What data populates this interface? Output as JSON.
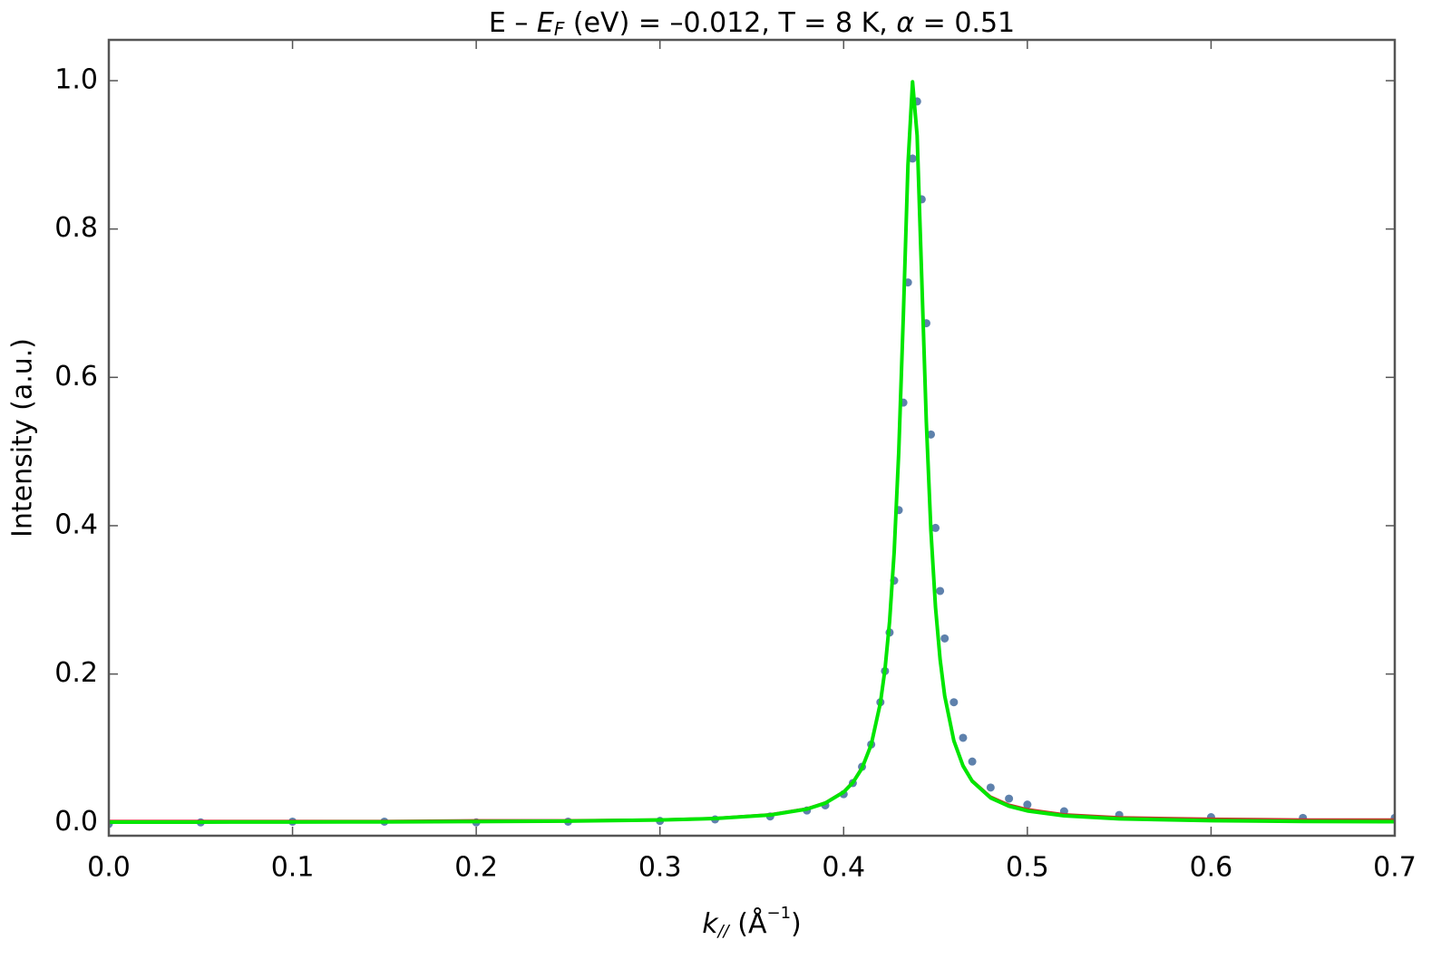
{
  "chart_data": {
    "type": "scatter",
    "title_parts": [
      "E – ",
      "E",
      "F",
      " (eV) = –0.012, T = 8 K, ",
      "α",
      " = 0.51"
    ],
    "x_label_parts": [
      "k",
      "//",
      " (Å",
      "−1",
      ")"
    ],
    "y_label": "Intensity (a.u.)",
    "xlim": [
      0,
      0.7
    ],
    "ylim": [
      -0.018,
      1.055
    ],
    "xticks": [
      {
        "value": 0,
        "label": "0.0"
      },
      0.1,
      0.2,
      0.3,
      0.4,
      0.5,
      0.6,
      0.7
    ],
    "yticks": [
      {
        "value": 0,
        "label": "0.0"
      },
      0.2,
      0.4,
      0.6,
      0.8,
      {
        "value": 1,
        "label": "1.0"
      }
    ],
    "frame_color": "#555555",
    "series": [
      {
        "mode": "markers",
        "color": "#5e81ac",
        "x": [
          0,
          0.05,
          0.1,
          0.15,
          0.2,
          0.25,
          0.3,
          0.33,
          0.36,
          0.38,
          0.39,
          0.4,
          0.405,
          0.41,
          0.415,
          0.42,
          0.4225,
          0.425,
          0.4275,
          0.43,
          0.4325,
          0.435,
          0.4375,
          0.44,
          0.4425,
          0.445,
          0.4475,
          0.45,
          0.4525,
          0.455,
          0.46,
          0.465,
          0.47,
          0.48,
          0.49,
          0.5,
          0.52,
          0.55,
          0.6,
          0.65,
          0.7
        ],
        "values": [
          -0.002,
          0.0,
          0.001,
          0.001,
          0.0,
          0.001,
          0.002,
          0.004,
          0.008,
          0.016,
          0.023,
          0.038,
          0.053,
          0.075,
          0.105,
          0.162,
          0.204,
          0.256,
          0.326,
          0.421,
          0.566,
          0.728,
          0.895,
          0.972,
          0.84,
          0.673,
          0.523,
          0.397,
          0.312,
          0.248,
          0.162,
          0.114,
          0.082,
          0.047,
          0.032,
          0.024,
          0.015,
          0.01,
          0.007,
          0.006,
          0.006
        ]
      },
      {
        "mode": "lines",
        "color": "#c0392b",
        "x": [
          0,
          0.05,
          0.1,
          0.15,
          0.2,
          0.25,
          0.3,
          0.33,
          0.36,
          0.38,
          0.39,
          0.4,
          0.405,
          0.41,
          0.415,
          0.42,
          0.4225,
          0.425,
          0.4275,
          0.43,
          0.4325,
          0.435,
          0.4375,
          0.44,
          0.4425,
          0.445,
          0.4475,
          0.45,
          0.4525,
          0.455,
          0.46,
          0.465,
          0.47,
          0.48,
          0.49,
          0.5,
          0.52,
          0.55,
          0.6,
          0.65,
          0.7
        ],
        "values": [
          0.002,
          0.002,
          0.002,
          0.002,
          0.003,
          0.003,
          0.004,
          0.006,
          0.011,
          0.019,
          0.027,
          0.042,
          0.055,
          0.075,
          0.106,
          0.162,
          0.207,
          0.271,
          0.365,
          0.5,
          0.684,
          0.886,
          0.999,
          0.926,
          0.734,
          0.541,
          0.394,
          0.291,
          0.221,
          0.172,
          0.112,
          0.078,
          0.057,
          0.035,
          0.024,
          0.018,
          0.011,
          0.007,
          0.005,
          0.004,
          0.004
        ]
      },
      {
        "mode": "lines",
        "color": "#00e600",
        "x": [
          0,
          0.05,
          0.1,
          0.15,
          0.2,
          0.25,
          0.3,
          0.33,
          0.36,
          0.38,
          0.39,
          0.4,
          0.405,
          0.41,
          0.415,
          0.42,
          0.4225,
          0.425,
          0.4275,
          0.43,
          0.4325,
          0.435,
          0.4375,
          0.44,
          0.4425,
          0.445,
          0.4475,
          0.45,
          0.4525,
          0.455,
          0.46,
          0.465,
          0.47,
          0.48,
          0.49,
          0.5,
          0.52,
          0.55,
          0.6,
          0.65,
          0.7
        ],
        "values": [
          0.0003,
          0.0004,
          0.0005,
          0.0007,
          0.0011,
          0.0017,
          0.0032,
          0.0052,
          0.01,
          0.0179,
          0.0259,
          0.0408,
          0.0535,
          0.073,
          0.1048,
          0.1611,
          0.2063,
          0.2708,
          0.3644,
          0.5,
          0.684,
          0.886,
          0.9985,
          0.926,
          0.734,
          0.54,
          0.393,
          0.29,
          0.2197,
          0.1706,
          0.1099,
          0.076,
          0.0554,
          0.033,
          0.0218,
          0.0155,
          0.0089,
          0.0048,
          0.0023,
          0.0013,
          0.0009
        ]
      }
    ]
  }
}
